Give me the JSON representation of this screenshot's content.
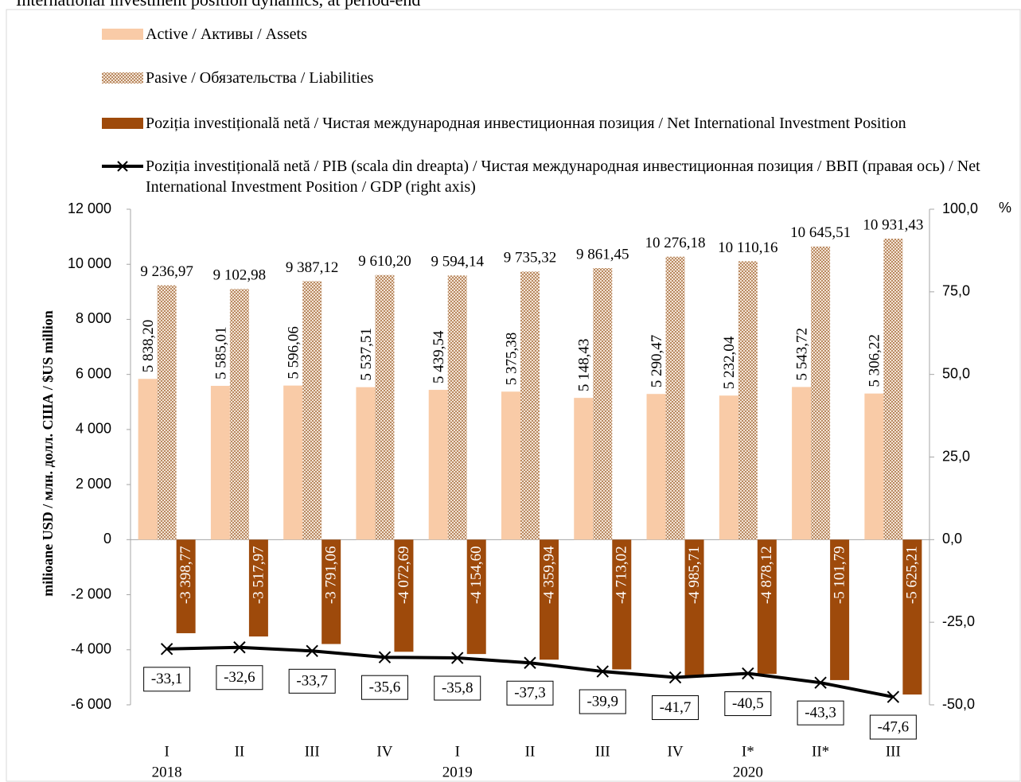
{
  "chart_data": {
    "type": "bar",
    "title": "International investment position dynamics, at period-end",
    "y_label": "milioane USD / млн. долл. США / $US million",
    "y2_label": "%",
    "categories": [
      "I",
      "II",
      "III",
      "IV",
      "I",
      "II",
      "III",
      "IV",
      "I*",
      "II*",
      "III"
    ],
    "year_labels": [
      "2018",
      null,
      null,
      null,
      "2019",
      null,
      null,
      null,
      "2020",
      null,
      null
    ],
    "ylim": [
      -6000,
      12000
    ],
    "yticks": [
      {
        "value": -6000,
        "label": "-6 000"
      },
      {
        "value": -4000,
        "label": "-4 000"
      },
      {
        "value": -2000,
        "label": "-2 000"
      },
      0,
      {
        "value": 2000,
        "label": "2 000"
      },
      {
        "value": 4000,
        "label": "4 000"
      },
      {
        "value": 6000,
        "label": "6 000"
      },
      {
        "value": 8000,
        "label": "8 000"
      },
      {
        "value": 10000,
        "label": "10 000"
      },
      {
        "value": 12000,
        "label": "12 000"
      }
    ],
    "y2lim": [
      -50,
      100
    ],
    "y2ticks": [
      {
        "value": -50,
        "label": "-50,0"
      },
      {
        "value": -25,
        "label": "-25,0"
      },
      {
        "value": 0,
        "label": "0,0"
      },
      {
        "value": 25,
        "label": "25,0"
      },
      {
        "value": 50,
        "label": "50,0"
      },
      {
        "value": 75,
        "label": "75,0"
      },
      {
        "value": 100,
        "label": "100,0"
      }
    ],
    "grid": false,
    "series": [
      {
        "name": "Active / Активы / Assets",
        "color": "#f9cba7",
        "values": [
          5838.2,
          5585.01,
          5596.06,
          5537.51,
          5439.54,
          5375.38,
          5148.43,
          5290.47,
          5232.04,
          5543.72,
          5306.22
        ],
        "value_labels": [
          "5 838,20",
          "5 585,01",
          "5 596,06",
          "5 537,51",
          "5 439,54",
          "5 375,38",
          "5 148,43",
          "5 290,47",
          "5 232,04",
          "5 543,72",
          "5 306,22"
        ]
      },
      {
        "name": "Pasive / Обязательства / Liabilities",
        "color": "#c49a74",
        "values": [
          9236.97,
          9102.98,
          9387.12,
          9610.2,
          9594.14,
          9735.32,
          9861.45,
          10276.18,
          10110.16,
          10645.51,
          10931.43
        ],
        "value_labels": [
          "9 236,97",
          "9 102,98",
          "9 387,12",
          "9 610,20",
          "9 594,14",
          "9 735,32",
          "9 861,45",
          "10 276,18",
          "10 110,16",
          "10 645,51",
          "10 931,43"
        ]
      },
      {
        "name": "Poziția investițională netă / Чистая международная инвестиционная позиция / Net International Investment Position",
        "color": "#9e4a0b",
        "values": [
          -3398.77,
          -3517.97,
          -3791.06,
          -4072.69,
          -4154.6,
          -4359.94,
          -4713.02,
          -4985.71,
          -4878.12,
          -5101.79,
          -5625.21
        ],
        "value_labels": [
          "-3 398,77",
          "-3 517,97",
          "-3 791,06",
          "-4 072,69",
          "-4 154,60",
          "-4 359,94",
          "-4 713,02",
          "-4 985,71",
          "-4 878,12",
          "-5 101,79",
          "-5 625,21"
        ]
      },
      {
        "name": "Poziția investițională netă / PIB (scala din dreapta) / Чистая международная инвестиционная позиция / ВВП (правая ось) / Net International Investment Position / GDP (right axis)",
        "color": "#000000",
        "axis": "y2",
        "kind": "line",
        "values": [
          -33.1,
          -32.6,
          -33.7,
          -35.6,
          -35.8,
          -37.3,
          -39.9,
          -41.7,
          -40.5,
          -43.3,
          -47.6
        ],
        "value_labels": [
          "-33,1",
          "-32,6",
          "-33,7",
          "-35,6",
          "-35,8",
          "-37,3",
          "-39,9",
          "-41,7",
          "-40,5",
          "-43,3",
          "-47,6"
        ]
      }
    ]
  }
}
